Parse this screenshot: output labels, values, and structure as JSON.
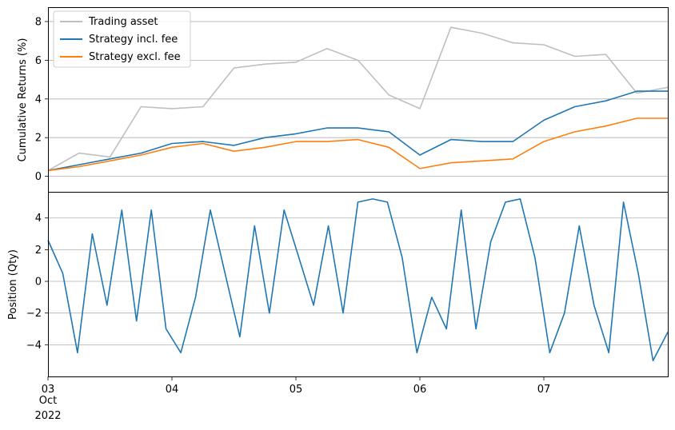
{
  "chart_data": [
    {
      "type": "line",
      "ylabel": "Cumulative Returns (%)",
      "x": [
        "2022-10-03T00:00",
        "2022-10-03T06:00",
        "2022-10-03T12:00",
        "2022-10-03T18:00",
        "2022-10-04T00:00",
        "2022-10-04T06:00",
        "2022-10-04T12:00",
        "2022-10-04T18:00",
        "2022-10-05T00:00",
        "2022-10-05T06:00",
        "2022-10-05T12:00",
        "2022-10-05T18:00",
        "2022-10-06T00:00",
        "2022-10-06T06:00",
        "2022-10-06T12:00",
        "2022-10-06T18:00",
        "2022-10-07T00:00",
        "2022-10-07T06:00",
        "2022-10-07T12:00",
        "2022-10-07T18:00",
        "2022-10-08T00:00"
      ],
      "ylim": [
        -0.8,
        8.7
      ],
      "yticks": [
        "0",
        "2",
        "4",
        "6",
        "8"
      ],
      "grid": "horizontal",
      "legend_position": "top-left",
      "series": [
        {
          "name": "Trading asset",
          "color": "#bfbfbf",
          "values": [
            0.3,
            1.2,
            1.0,
            3.6,
            3.5,
            3.6,
            5.6,
            5.8,
            5.9,
            6.6,
            6.0,
            4.2,
            3.5,
            7.7,
            7.4,
            6.9,
            6.8,
            6.2,
            6.3,
            4.3,
            4.6
          ]
        },
        {
          "name": "Strategy incl. fee",
          "color": "#1f77b4",
          "values": [
            0.3,
            0.6,
            0.9,
            1.2,
            1.7,
            1.8,
            1.6,
            2.0,
            2.2,
            2.5,
            2.5,
            2.3,
            1.1,
            1.9,
            1.8,
            1.8,
            2.9,
            3.6,
            3.9,
            4.4,
            4.4
          ]
        },
        {
          "name": "Strategy excl. fee",
          "color": "#ff7f0e",
          "values": [
            0.3,
            0.5,
            0.8,
            1.1,
            1.5,
            1.7,
            1.3,
            1.5,
            1.8,
            1.8,
            1.9,
            1.5,
            0.4,
            0.7,
            0.8,
            0.9,
            1.8,
            2.3,
            2.6,
            3.0,
            3.0
          ]
        }
      ]
    },
    {
      "type": "line",
      "ylabel": "Position (Qty)",
      "ylim": [
        -6.0,
        5.6
      ],
      "yticks": [
        "4",
        "2",
        "0",
        "−2",
        "−4"
      ],
      "xticks": [
        "03",
        "04",
        "05",
        "06",
        "07"
      ],
      "xtick_sublabel": [
        "Oct",
        "2022"
      ],
      "grid": "horizontal",
      "series": [
        {
          "name": "",
          "color": "#1f77b4",
          "values": [
            2.6,
            0.5,
            -4.5,
            3.0,
            -1.5,
            4.5,
            -2.5,
            4.5,
            -3.0,
            -4.5,
            -1.0,
            4.5,
            0.5,
            -3.5,
            3.5,
            -2.0,
            4.5,
            1.5,
            -1.5,
            3.5,
            -2.0,
            5.0,
            5.2,
            5.0,
            1.5,
            -4.5,
            -1.0,
            -3.0,
            4.5,
            -3.0,
            2.5,
            5.0,
            5.2,
            1.5,
            -4.5,
            -2.0,
            3.5,
            -1.5,
            -4.5,
            5.0,
            0.5,
            -5.0,
            -3.2
          ]
        }
      ]
    }
  ]
}
